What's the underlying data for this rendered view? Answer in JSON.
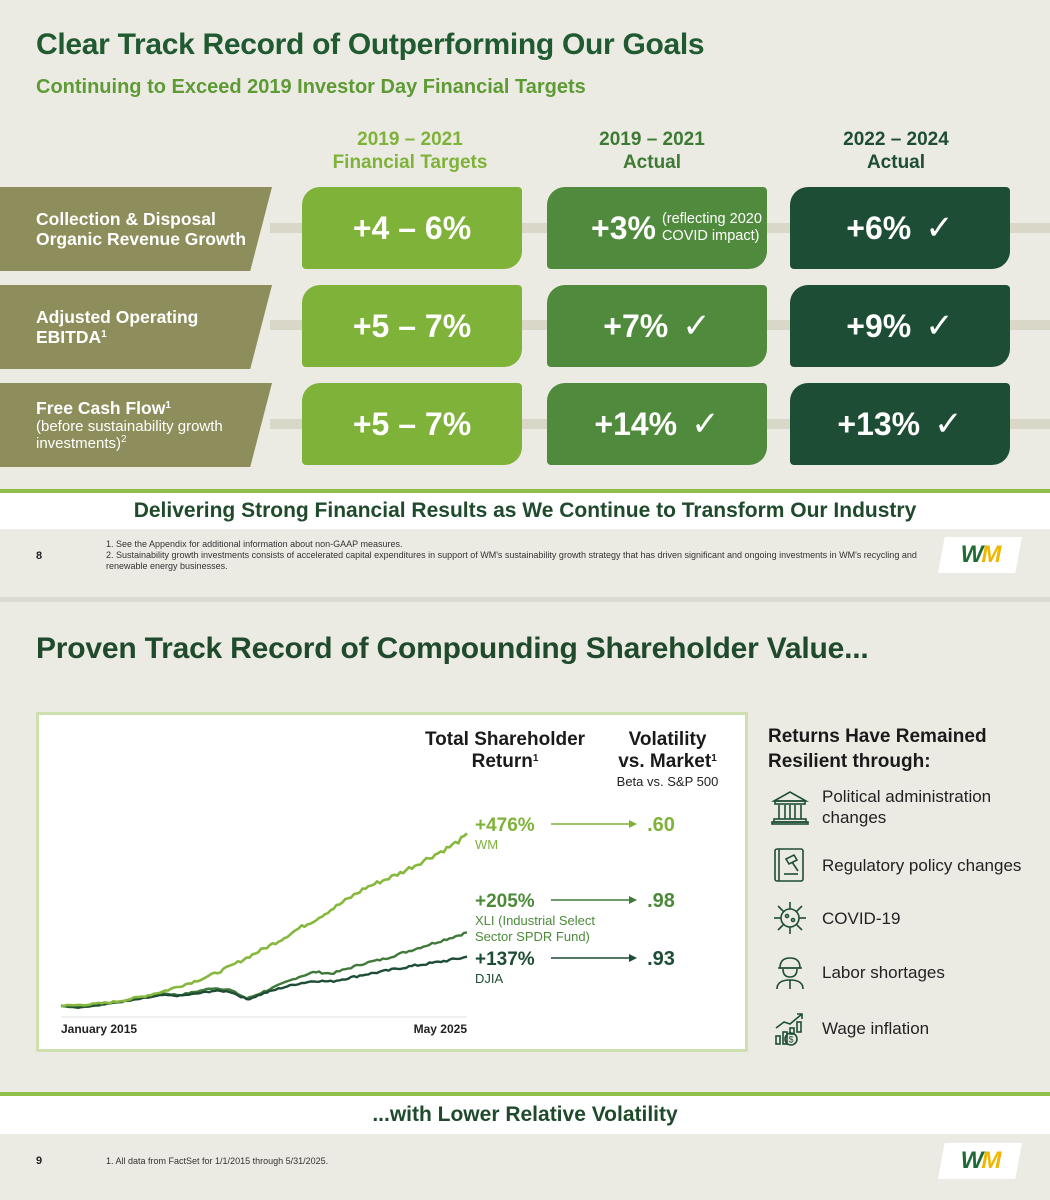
{
  "slide8": {
    "title": "Clear Track Record of Outperforming Our Goals",
    "subtitle": "Continuing to Exceed 2019 Investor Day Financial Targets",
    "columns": [
      {
        "line1": "2019 – 2021",
        "line2": "Financial Targets",
        "color": "#7fb239"
      },
      {
        "line1": "2019 – 2021",
        "line2": "Actual",
        "color": "#508a3c"
      },
      {
        "line1": "2022 – 2024",
        "line2": "Actual",
        "color": "#1e4d35"
      }
    ],
    "rows": [
      {
        "label": "Collection & Disposal Organic Revenue Growth",
        "target": "+4 – 6%",
        "actual_2019": "+3%",
        "actual_2019_note": "(reflecting 2020 COVID impact)",
        "actual_2022": "+6%"
      },
      {
        "label": "Adjusted Operating EBITDA",
        "label_sup": "1",
        "target": "+5 – 7%",
        "actual_2019": "+7%",
        "actual_2022": "+9%"
      },
      {
        "label": "Free Cash Flow",
        "label_sup": "1",
        "label_sub": "(before sustainability growth investments)",
        "label_sub_sup": "2",
        "target": "+5 – 7%",
        "actual_2019": "+14%",
        "actual_2022": "+13%"
      }
    ],
    "check": "✓",
    "banner": "Delivering Strong Financial Results as We Continue to Transform Our Industry",
    "page_number": "8",
    "footnotes": [
      "1.  See the Appendix for additional information about non-GAAP measures.",
      "2.  Sustainability growth investments consists of accelerated capital expenditures in support of WM's sustainability growth strategy that has driven significant and ongoing investments in WM's recycling and renewable energy businesses."
    ],
    "logo": "WM"
  },
  "slide9": {
    "title": "Proven Track Record of Compounding Shareholder Value...",
    "chart_header_tsr": "Total Shareholder Return",
    "chart_header_tsr_sup": "1",
    "chart_header_vol_line1": "Volatility",
    "chart_header_vol_line2": "vs. Market",
    "chart_header_vol_sup": "1",
    "chart_header_beta": "Beta vs. S&P 500",
    "resilient_title": "Returns Have Remained Resilient through:",
    "resilient_items": [
      {
        "icon": "capitol-building-icon",
        "text": "Political administration changes"
      },
      {
        "icon": "gavel-book-icon",
        "text": "Regulatory policy changes"
      },
      {
        "icon": "virus-icon",
        "text": "COVID-19"
      },
      {
        "icon": "hardhat-worker-icon",
        "text": "Labor shortages"
      },
      {
        "icon": "money-growth-icon",
        "text": "Wage inflation"
      }
    ],
    "banner": "...with Lower Relative Volatility",
    "page_number": "9",
    "footnote": "1.  All data from FactSet for 1/1/2015 through 5/31/2025.",
    "logo": "WM"
  },
  "chart_data": {
    "type": "line",
    "x_start_label": "January 2015",
    "x_end_label": "May 2025",
    "series": [
      {
        "name": "WM",
        "total_return": "+476%",
        "beta": ".60",
        "color": "#86b83d",
        "values": [
          0,
          2,
          5,
          10,
          18,
          28,
          40,
          55,
          70,
          88,
          110,
          135,
          160,
          185,
          215,
          240,
          270,
          300,
          330,
          350,
          370,
          395,
          420,
          445,
          476
        ]
      },
      {
        "name": "XLI (Industrial Select Sector SPDR Fund)",
        "total_return": "+205%",
        "beta": ".98",
        "color": "#3f7a3a",
        "values": [
          0,
          -5,
          0,
          8,
          15,
          25,
          35,
          30,
          40,
          50,
          45,
          20,
          40,
          60,
          80,
          95,
          90,
          105,
          120,
          130,
          145,
          160,
          175,
          190,
          205
        ]
      },
      {
        "name": "DJIA",
        "total_return": "+137%",
        "beta": ".93",
        "color": "#1e4d35",
        "values": [
          0,
          -4,
          2,
          8,
          14,
          22,
          30,
          28,
          34,
          42,
          40,
          18,
          35,
          50,
          62,
          70,
          68,
          78,
          88,
          96,
          105,
          113,
          120,
          128,
          137
        ]
      }
    ]
  }
}
